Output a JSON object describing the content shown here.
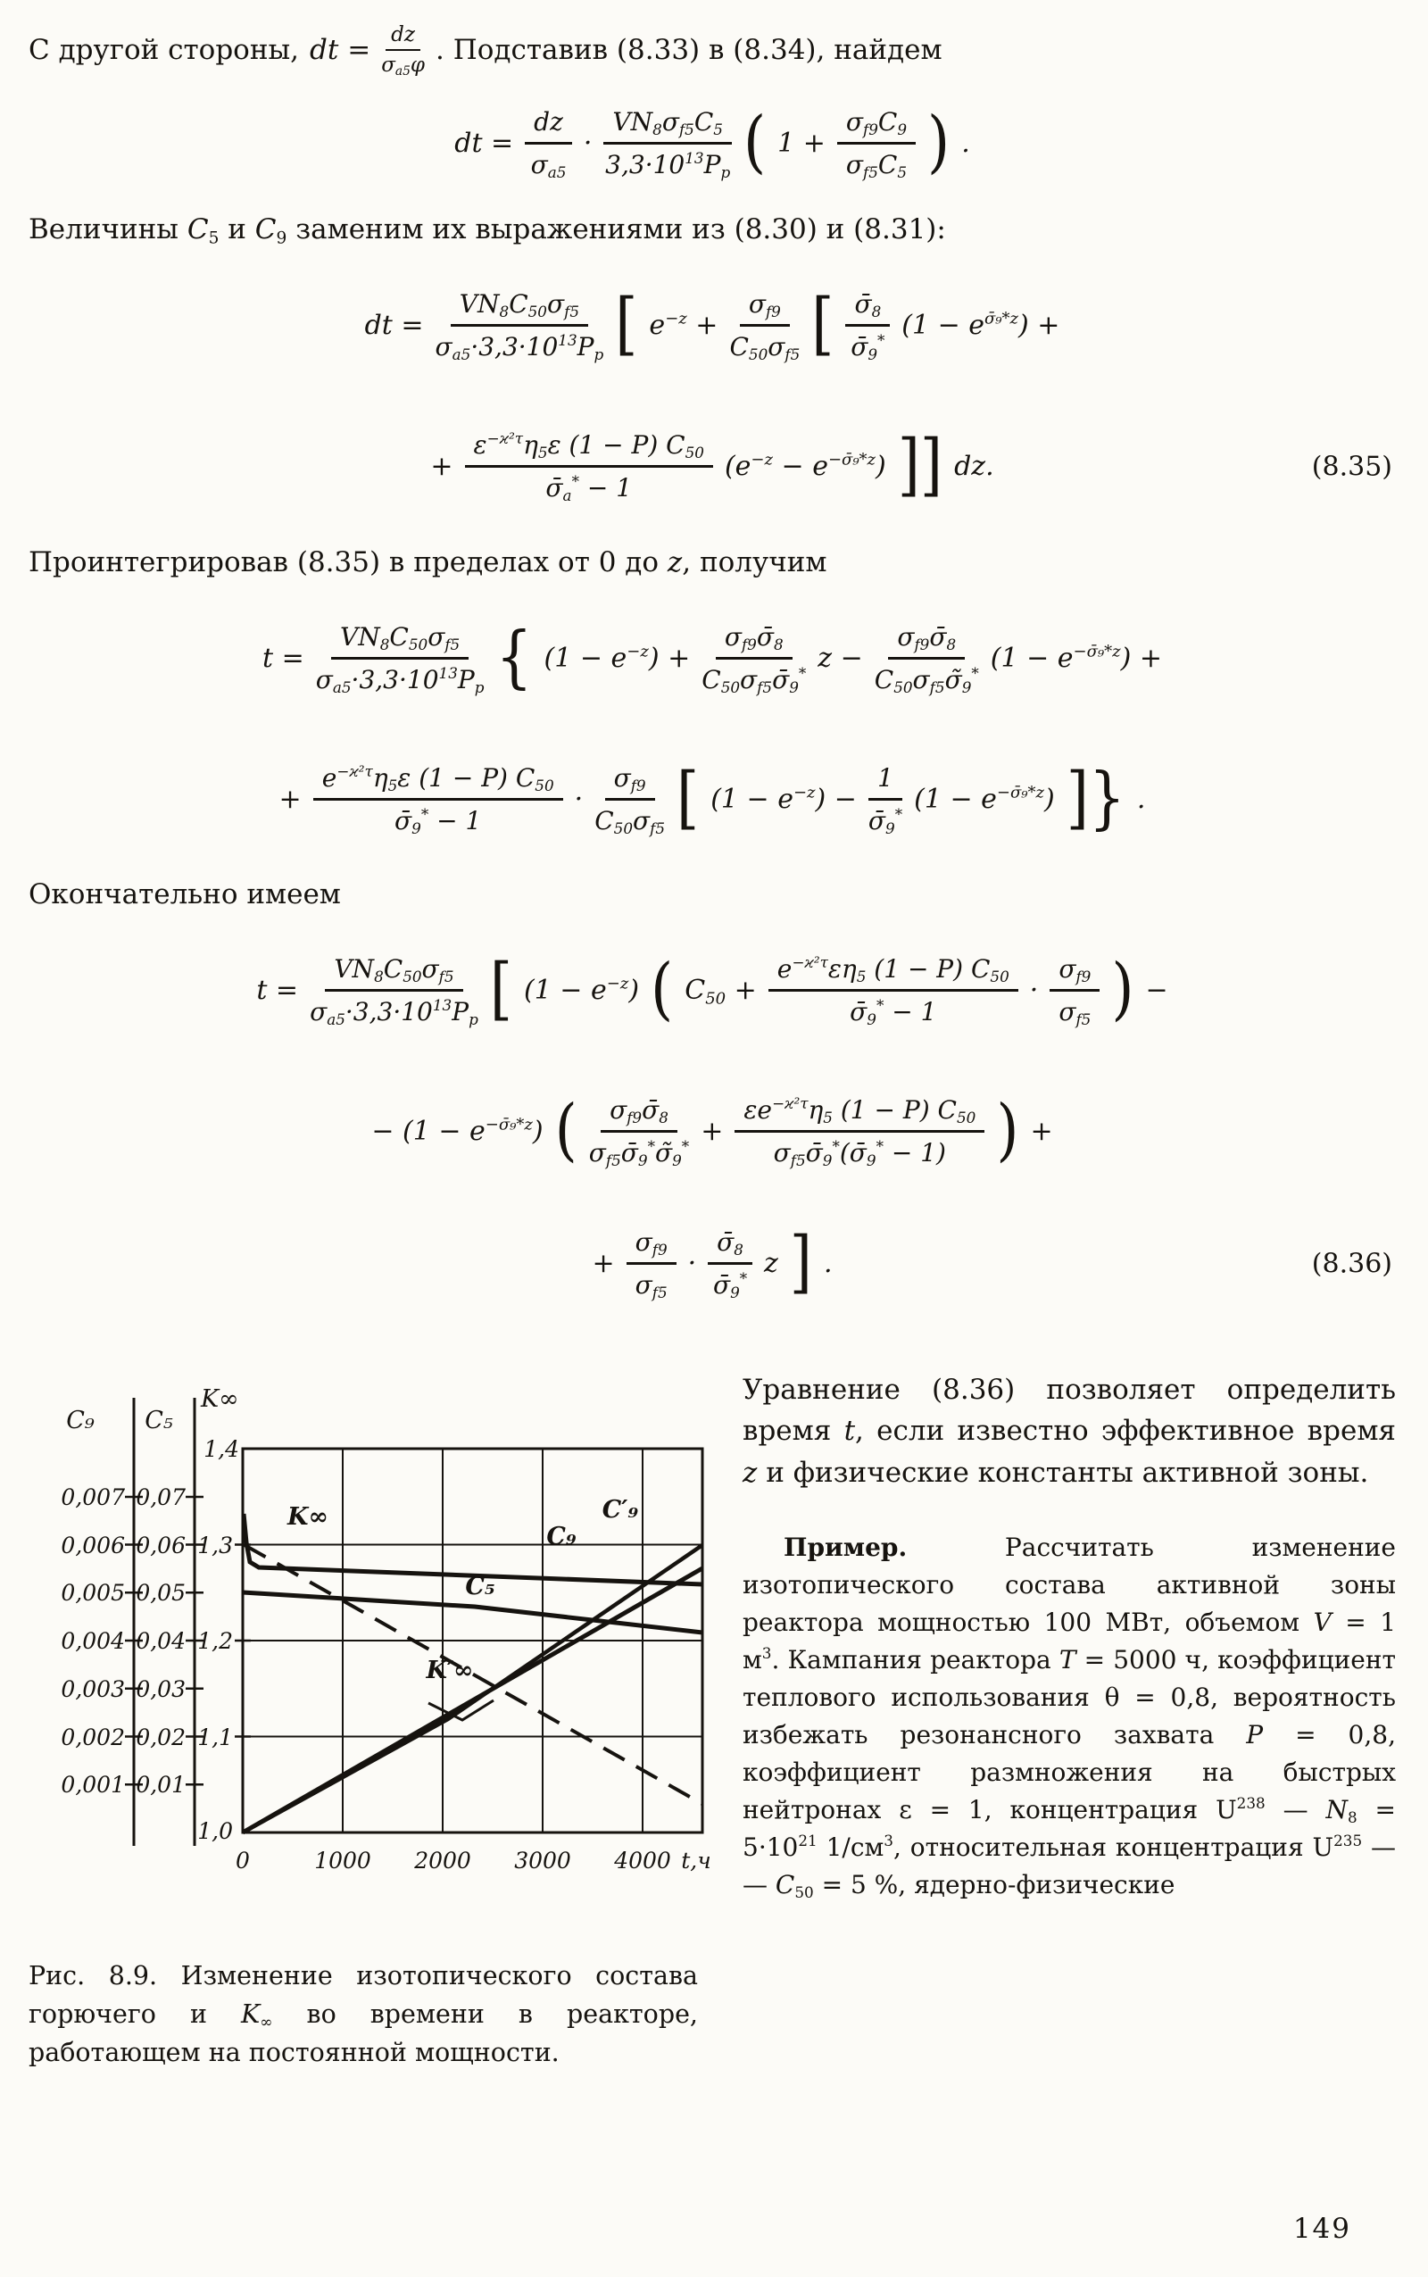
{
  "page_number": "149",
  "colors": {
    "ink": "#16130f",
    "paper": "#fcfbf7"
  },
  "intro": {
    "pre": "С другой стороны,",
    "lhs": "dt =",
    "frac": {
      "num": "dz",
      "den": "σ_{a5}φ"
    },
    "post": ".  Подставив (8.33) в (8.34), найдем"
  },
  "eq_first": {
    "lhs": "dt =",
    "f1": {
      "num": "dz",
      "den": "σ_{a5}"
    },
    "dot": "·",
    "f2": {
      "num": "VN_{8}σ_{f5}C_{5}",
      "den": "3,3·10^{13}P_{p}"
    },
    "open": "(",
    "t1": "1 +",
    "f3": {
      "num": "σ_{f9}C_{9}",
      "den": "σ_{f5}C_{5}"
    },
    "close": ")",
    "end": "."
  },
  "para1": "Величины **C**_{5} и **C**_{9} заменим их выражениями из (8.30) и (8.31):",
  "eq835": {
    "number": "(8.35)",
    "line1": {
      "lhs": "dt =",
      "f1": {
        "num": "VN_{8}C_{50}σ_{f5}",
        "den": "σ_{a5}·3,3·10^{13}P_{p}"
      },
      "open": "[",
      "t1": "e^{−z} +",
      "f2": {
        "num": "σ_{f9}",
        "den": "C_{50}σ_{f5}"
      },
      "open2": "[",
      "f3": {
        "num": "σ̄_{8}",
        "den": "σ̄_{9}^{*}"
      },
      "t2": "(1 − e^{σ̄₉*z}) +"
    },
    "line2": {
      "t1": "+",
      "f1": {
        "num": "ε^{−ϰ²τ}η_{5}ε (1 − P) C_{50}",
        "den": "σ̄_{a}^{*} − 1"
      },
      "t2": "(e^{−z} − e^{−σ̄₉*z})",
      "close": "]]",
      "t3": "dz."
    }
  },
  "para2": "Проинтегрировав (8.35) в пределах от 0 до **z**, получим",
  "eq_int": {
    "line1": {
      "lhs": "t =",
      "f1": {
        "num": "VN_{8}C_{50}σ_{f5}",
        "den": "σ_{a5}·3,3·10^{13}P_{p}"
      },
      "open": "{",
      "t1": "(1 − e^{−z}) +",
      "f2": {
        "num": "σ_{f9}σ̄_{8}",
        "den": "C_{50}σ_{f5}σ̄_{9}^{*}"
      },
      "t2": "z −",
      "f3": {
        "num": "σ_{f9}σ̄_{8}",
        "den": "C_{50}σ_{f5}σ̃_{9}^{*}"
      },
      "t3": "(1 − e^{−σ̄₉*z}) +"
    },
    "line2": {
      "t1": "+",
      "f1": {
        "num": "e^{−ϰ²τ}η_{5}ε (1 − P) C_{50}",
        "den": "σ̄_{9}^{*} − 1"
      },
      "dot": "·",
      "f2": {
        "num": "σ_{f9}",
        "den": "C_{50}σ_{f5}"
      },
      "open": "[",
      "t2": "(1 − e^{−z}) −",
      "f3": {
        "num": "1",
        "den": "σ̄_{9}^{*}"
      },
      "t3": "(1 − e^{−σ̄₉*z})",
      "close": "]}",
      "end": "."
    }
  },
  "para3": "Окончательно имеем",
  "eq836": {
    "number": "(8.36)",
    "line1": {
      "lhs": "t =",
      "f1": {
        "num": "VN_{8}C_{50}σ_{f5}",
        "den": "σ_{a5}·3,3·10^{13}P_{p}"
      },
      "open": "[",
      "t1": "(1 − e^{−z})",
      "open2": "(",
      "t2": "C_{50} +",
      "f2": {
        "num": "e^{−ϰ²τ}εη_{5} (1 − P) C_{50}",
        "den": "σ̄_{9}^{*} − 1"
      },
      "dot": "·",
      "f3": {
        "num": "σ_{f9}",
        "den": "σ_{f5}"
      },
      "close": ")",
      "t3": "−"
    },
    "line2": {
      "t1": "− (1 − e^{−σ̄₉*z})",
      "open": "(",
      "f1": {
        "num": "σ_{f9}σ̄_{8}",
        "den": "σ_{f5}σ̄_{9}^{*}σ̃_{9}^{*}"
      },
      "t2": "+",
      "f2": {
        "num": "εe^{−ϰ²τ}η_{5} (1 − P) C_{50}",
        "den": "σ_{f5}σ̄_{9}^{*}(σ̄_{9}^{*} − 1)"
      },
      "close": ")",
      "t3": "+"
    },
    "line3": {
      "t1": "+",
      "f1": {
        "num": "σ_{f9}",
        "den": "σ_{f5}"
      },
      "dot": "·",
      "f2": {
        "num": "σ̄_{8}",
        "den": "σ̄_{9}^{*}"
      },
      "t2": "z",
      "close": "]",
      "end": "."
    }
  },
  "figure": {
    "caption": "Рис. 8.9. Изменение изотопического состава горючего и **K**_{∞} во времени в реакторе, работающем на постоянной мощности.",
    "axis_c9": {
      "title": "C₉",
      "ticks": [
        "0,007",
        "0,006",
        "0,005",
        "0,004",
        "0,003",
        "0,002",
        "0,001"
      ]
    },
    "axis_c5": {
      "title": "C₅",
      "ticks": [
        "0,07",
        "0,06",
        "0,05",
        "0,04",
        "0,03",
        "0,02",
        "0,01"
      ]
    },
    "axis_k": {
      "title": "K∞",
      "ticks": [
        "1,4",
        "1,3",
        "1,2",
        "1,1",
        "1,0"
      ]
    },
    "axis_x": {
      "ticks": [
        "0",
        "1000",
        "2000",
        "3000",
        "4000"
      ],
      "unit": "t,ч"
    },
    "curve_labels": {
      "k": "K∞",
      "c9": "C₉",
      "c9p": "C′₉",
      "c5": "C₅",
      "kp": "K′∞"
    }
  },
  "chart_data": {
    "type": "line",
    "title": "Рис. 8.9. Изменение изотопического состава горючего и K∞ во времени",
    "xlabel": "t, ч",
    "x_range": [
      0,
      4600
    ],
    "x_ticks": [
      0,
      1000,
      2000,
      3000,
      4000
    ],
    "grid": true,
    "legend_position": "inline labels on curves",
    "axes": [
      {
        "name": "C9",
        "range": [
          0,
          0.007
        ],
        "ticks": [
          0.001,
          0.002,
          0.003,
          0.004,
          0.005,
          0.006,
          0.007
        ]
      },
      {
        "name": "C5",
        "range": [
          0,
          0.07
        ],
        "ticks": [
          0.01,
          0.02,
          0.03,
          0.04,
          0.05,
          0.06,
          0.07
        ]
      },
      {
        "name": "Kinf",
        "range": [
          1.0,
          1.4
        ],
        "ticks": [
          1.0,
          1.1,
          1.2,
          1.3,
          1.4
        ]
      }
    ],
    "series": [
      {
        "name": "K∞",
        "axis": "Kinf",
        "style": "solid",
        "points": [
          [
            0,
            1.33
          ],
          [
            100,
            1.276
          ],
          [
            1000,
            1.271
          ],
          [
            2000,
            1.267
          ],
          [
            3000,
            1.263
          ],
          [
            4600,
            1.258
          ]
        ]
      },
      {
        "name": "K′∞",
        "axis": "Kinf",
        "style": "dashed",
        "points": [
          [
            0,
            1.3
          ],
          [
            1000,
            1.245
          ],
          [
            2000,
            1.19
          ],
          [
            3000,
            1.13
          ],
          [
            4000,
            1.07
          ],
          [
            4600,
            1.03
          ]
        ]
      },
      {
        "name": "C₅",
        "axis": "C5",
        "style": "solid",
        "points": [
          [
            0,
            0.05
          ],
          [
            1000,
            0.0487
          ],
          [
            2000,
            0.047
          ],
          [
            3000,
            0.045
          ],
          [
            4600,
            0.0415
          ]
        ]
      },
      {
        "name": "C₉",
        "axis": "C9",
        "style": "solid",
        "points": [
          [
            0,
            0
          ],
          [
            1000,
            0.0012
          ],
          [
            2000,
            0.0025
          ],
          [
            3000,
            0.0038
          ],
          [
            4600,
            0.0055
          ]
        ]
      },
      {
        "name": "C′₉",
        "axis": "C9",
        "style": "solid",
        "points": [
          [
            0,
            0
          ],
          [
            1000,
            0.0013
          ],
          [
            2000,
            0.0028
          ],
          [
            3000,
            0.0043
          ],
          [
            4600,
            0.006
          ]
        ]
      }
    ]
  },
  "right_col": {
    "p1": "Уравнение (8.36) позволяет определить время **t**, если известно эффективное время **z** и физические константы активной зоны.",
    "p2_lead": "Пример.",
    "p2": " Рассчитать изменение изотопического состава активной зоны реактора мощностью 100 МВт, объемом **V** = 1 м^{3}. Кампания реактора **T** = 5000 ч, коэффициент теплового использования θ = 0,8, вероятность избежать резонансного захвата **P** = 0,8, коэффициент размножения на быстрых нейтронах ε = 1, концентрация U^{238} — **N**_{8} = 5·10^{21} 1/см^{3}, относительная концентрация U^{235} — — **C**_{50} = 5 %,  ядерно-физические"
  }
}
